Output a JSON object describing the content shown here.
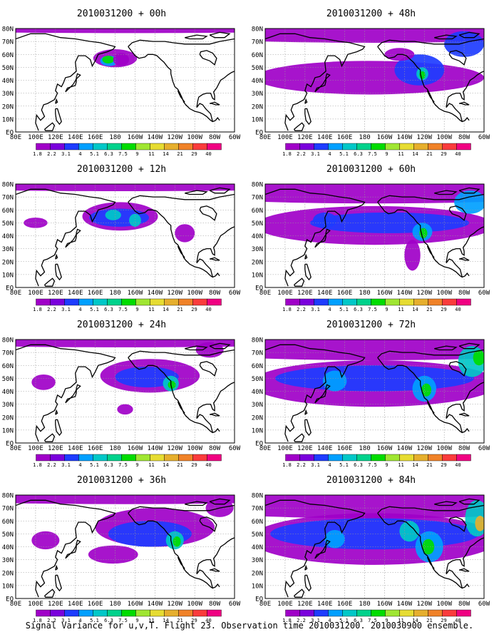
{
  "figure": {
    "caption": "Signal Variance for u,v,T. Flight 23. Observation time 2010031200. 2010030900 ensemble."
  },
  "panel_order": [
    "00h",
    "48h",
    "12h",
    "60h",
    "24h",
    "72h",
    "36h",
    "84h"
  ],
  "panels": {
    "00h": {
      "title": "2010031200 + 00h"
    },
    "12h": {
      "title": "2010031200 + 12h"
    },
    "24h": {
      "title": "2010031200 + 24h"
    },
    "36h": {
      "title": "2010031200 + 36h"
    },
    "48h": {
      "title": "2010031200 + 48h"
    },
    "60h": {
      "title": "2010031200 + 60h"
    },
    "72h": {
      "title": "2010031200 + 72h"
    },
    "84h": {
      "title": "2010031200 + 84h"
    }
  },
  "map_axes": {
    "lon_labels": [
      "80E",
      "100E",
      "120E",
      "140E",
      "160E",
      "180",
      "160W",
      "140W",
      "120W",
      "100W",
      "80W",
      "60W"
    ],
    "lat_labels": [
      "80N",
      "70N",
      "60N",
      "50N",
      "40N",
      "30N",
      "20N",
      "10N",
      "EQ"
    ],
    "lon_range": [
      80,
      300
    ],
    "lat_range": [
      0,
      80
    ],
    "grid": true
  },
  "colorbar": {
    "levels": [
      "1.8",
      "2.2",
      "3.1",
      "4",
      "5.1",
      "6.3",
      "7.5",
      "9",
      "11",
      "14",
      "21",
      "29",
      "40"
    ],
    "colors": [
      "#a000c8",
      "#7a00dc",
      "#1e3cff",
      "#00a0ff",
      "#00c8c8",
      "#00d28c",
      "#00dc00",
      "#a0e632",
      "#e6dc32",
      "#e6af2d",
      "#f08228",
      "#fa3c3c",
      "#f00082"
    ]
  },
  "colors": {
    "background": "#ffffff",
    "coastline": "#000000",
    "gridline": "#999999"
  }
}
